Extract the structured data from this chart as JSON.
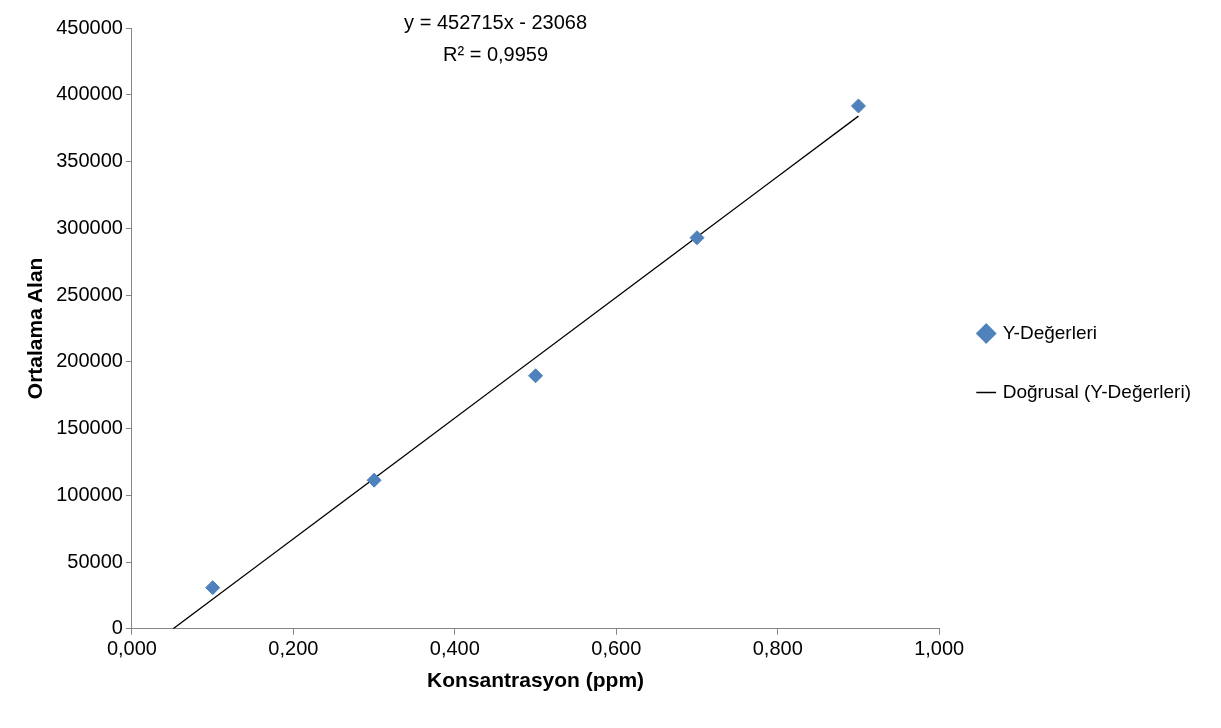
{
  "chart_data": {
    "type": "scatter",
    "xlabel": "Konsantrasyon (ppm)",
    "ylabel": "Ortalama Alan",
    "annotations": [
      "y = 452715x - 23068",
      "R² = 0,9959"
    ],
    "series": [
      {
        "name": "Y-Değerleri",
        "color": "#4f81bd",
        "marker": "diamond",
        "x": [
          0.1,
          0.3,
          0.5,
          0.7,
          0.9
        ],
        "values": [
          30800,
          111300,
          189500,
          292900,
          391600
        ]
      },
      {
        "name": "Doğrusal (Y-Değerleri)",
        "type": "line",
        "color": "#000000",
        "marker": "none",
        "line_style": "solid",
        "x": [
          0.051,
          0.9
        ],
        "values": [
          0,
          384000
        ]
      }
    ],
    "xlim": [
      0,
      1
    ],
    "xticks": [
      {
        "value": 0,
        "label": "0,000"
      },
      {
        "value": 0.2,
        "label": "0,200"
      },
      {
        "value": 0.4,
        "label": "0,400"
      },
      {
        "value": 0.6,
        "label": "0,600"
      },
      {
        "value": 0.8,
        "label": "0,800"
      },
      {
        "value": 1,
        "label": "1,000"
      }
    ],
    "ylim": [
      0,
      450000
    ],
    "yticks": [
      0,
      50000,
      100000,
      150000,
      200000,
      250000,
      300000,
      350000,
      400000,
      450000
    ],
    "grid": false,
    "legend": "right"
  }
}
